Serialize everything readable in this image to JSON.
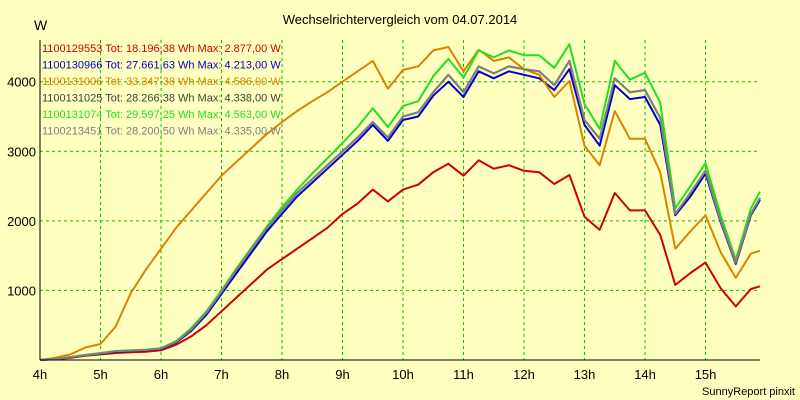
{
  "chart_data": {
    "type": "line",
    "title": "Wechselrichtervergleich vom 04.07.2014",
    "ylabel": "W",
    "xlabel": "",
    "credit": "SunnyReport pinxit",
    "xlim": [
      4.0,
      15.9
    ],
    "ylim": [
      0,
      4600
    ],
    "grid": true,
    "x_ticks": [
      {
        "value": 4,
        "label": "4h"
      },
      {
        "value": 5,
        "label": "5h"
      },
      {
        "value": 6,
        "label": "6h"
      },
      {
        "value": 7,
        "label": "7h"
      },
      {
        "value": 8,
        "label": "8h"
      },
      {
        "value": 9,
        "label": "9h"
      },
      {
        "value": 10,
        "label": "10h"
      },
      {
        "value": 11,
        "label": "11h"
      },
      {
        "value": 12,
        "label": "12h"
      },
      {
        "value": 13,
        "label": "13h"
      },
      {
        "value": 14,
        "label": "14h"
      },
      {
        "value": 15,
        "label": "15h"
      }
    ],
    "y_ticks": [
      {
        "value": 1000,
        "label": "1000"
      },
      {
        "value": 2000,
        "label": "2000"
      },
      {
        "value": 3000,
        "label": "3000"
      },
      {
        "value": 4000,
        "label": "4000"
      }
    ],
    "x": [
      4.0,
      4.25,
      4.5,
      4.75,
      5.0,
      5.25,
      5.5,
      5.75,
      6.0,
      6.25,
      6.5,
      6.75,
      7.0,
      7.25,
      7.5,
      7.75,
      8.0,
      8.25,
      8.5,
      8.75,
      9.0,
      9.25,
      9.5,
      9.75,
      10.0,
      10.25,
      10.5,
      10.75,
      11.0,
      11.25,
      11.5,
      11.75,
      12.0,
      12.25,
      12.5,
      12.75,
      13.0,
      13.25,
      13.5,
      13.75,
      14.0,
      14.25,
      14.5,
      14.75,
      15.0,
      15.25,
      15.5,
      15.75,
      15.9
    ],
    "series": [
      {
        "name": "1100129553",
        "legend": "1100129553 Tot: 18.196,38 Wh Max: 2.877,00 W",
        "color": "#d00000",
        "values": [
          0,
          10,
          30,
          60,
          80,
          100,
          110,
          120,
          140,
          220,
          340,
          500,
          700,
          900,
          1100,
          1300,
          1450,
          1600,
          1750,
          1900,
          2100,
          2250,
          2450,
          2280,
          2450,
          2520,
          2700,
          2820,
          2650,
          2870,
          2750,
          2800,
          2720,
          2700,
          2530,
          2660,
          2060,
          1870,
          2400,
          2150,
          2150,
          1800,
          1080,
          1250,
          1400,
          1030,
          770,
          1020,
          1060
        ]
      },
      {
        "name": "1100130966",
        "legend": "1100130966 Tot: 27.661,63 Wh Max: 4.213,00 W",
        "color": "#0000d0",
        "values": [
          0,
          15,
          40,
          70,
          90,
          120,
          130,
          140,
          160,
          250,
          420,
          650,
          950,
          1250,
          1550,
          1850,
          2100,
          2350,
          2550,
          2750,
          2950,
          3150,
          3380,
          3150,
          3450,
          3500,
          3800,
          4000,
          3780,
          4150,
          4050,
          4150,
          4100,
          4050,
          3880,
          4180,
          3380,
          3080,
          3950,
          3750,
          3780,
          3380,
          2080,
          2350,
          2680,
          1980,
          1380,
          2080,
          2300
        ]
      },
      {
        "name": "1100131006",
        "legend": "1100131006 Tot: 33.347,38 Wh Max: 4.586,00 W",
        "color": "#e08000",
        "values": [
          0,
          30,
          80,
          180,
          230,
          480,
          960,
          1300,
          1600,
          1900,
          2150,
          2400,
          2650,
          2850,
          3050,
          3250,
          3420,
          3580,
          3720,
          3850,
          4000,
          4150,
          4300,
          3900,
          4170,
          4220,
          4450,
          4500,
          4150,
          4460,
          4300,
          4350,
          4180,
          4100,
          3780,
          4010,
          3080,
          2800,
          3580,
          3180,
          3180,
          2700,
          1600,
          1850,
          2080,
          1550,
          1180,
          1530,
          1570
        ]
      },
      {
        "name": "1100131025",
        "legend": "1100131025 Tot: 28.266,38 Wh Max: 4.338,00 W",
        "color": "#404040",
        "values": [
          0,
          15,
          40,
          70,
          95,
          125,
          135,
          145,
          165,
          260,
          440,
          680,
          980,
          1300,
          1600,
          1900,
          2150,
          2400,
          2600,
          2800,
          3000,
          3200,
          3420,
          3200,
          3500,
          3560,
          3850,
          4100,
          3850,
          4220,
          4120,
          4220,
          4180,
          4150,
          3950,
          4300,
          3450,
          3180,
          4050,
          3850,
          3880,
          3480,
          2100,
          2400,
          2720,
          2000,
          1400,
          2100,
          2330
        ]
      },
      {
        "name": "1100131074",
        "legend": "1100131074 Tot: 29.597,25 Wh Max: 4.563,00 W",
        "color": "#20e020",
        "values": [
          0,
          15,
          42,
          75,
          100,
          130,
          140,
          150,
          170,
          270,
          460,
          700,
          1000,
          1320,
          1620,
          1920,
          2200,
          2450,
          2680,
          2900,
          3120,
          3350,
          3620,
          3350,
          3650,
          3720,
          4080,
          4330,
          4060,
          4450,
          4350,
          4450,
          4380,
          4380,
          4200,
          4540,
          3680,
          3320,
          4300,
          4030,
          4130,
          3700,
          2180,
          2500,
          2830,
          2080,
          1440,
          2180,
          2420
        ]
      },
      {
        "name": "1100213451",
        "legend": "1100213451 Tot: 28.200,50 Wh Max: 4.335,00 W",
        "color": "#808080",
        "values": [
          0,
          15,
          40,
          70,
          95,
          125,
          135,
          145,
          165,
          260,
          440,
          680,
          980,
          1300,
          1600,
          1900,
          2150,
          2400,
          2600,
          2800,
          3000,
          3200,
          3420,
          3200,
          3500,
          3560,
          3850,
          4100,
          3850,
          4220,
          4120,
          4220,
          4180,
          4150,
          3950,
          4300,
          3450,
          3180,
          4050,
          3850,
          3880,
          3480,
          2100,
          2400,
          2720,
          2000,
          1400,
          2100,
          2330
        ]
      }
    ]
  }
}
